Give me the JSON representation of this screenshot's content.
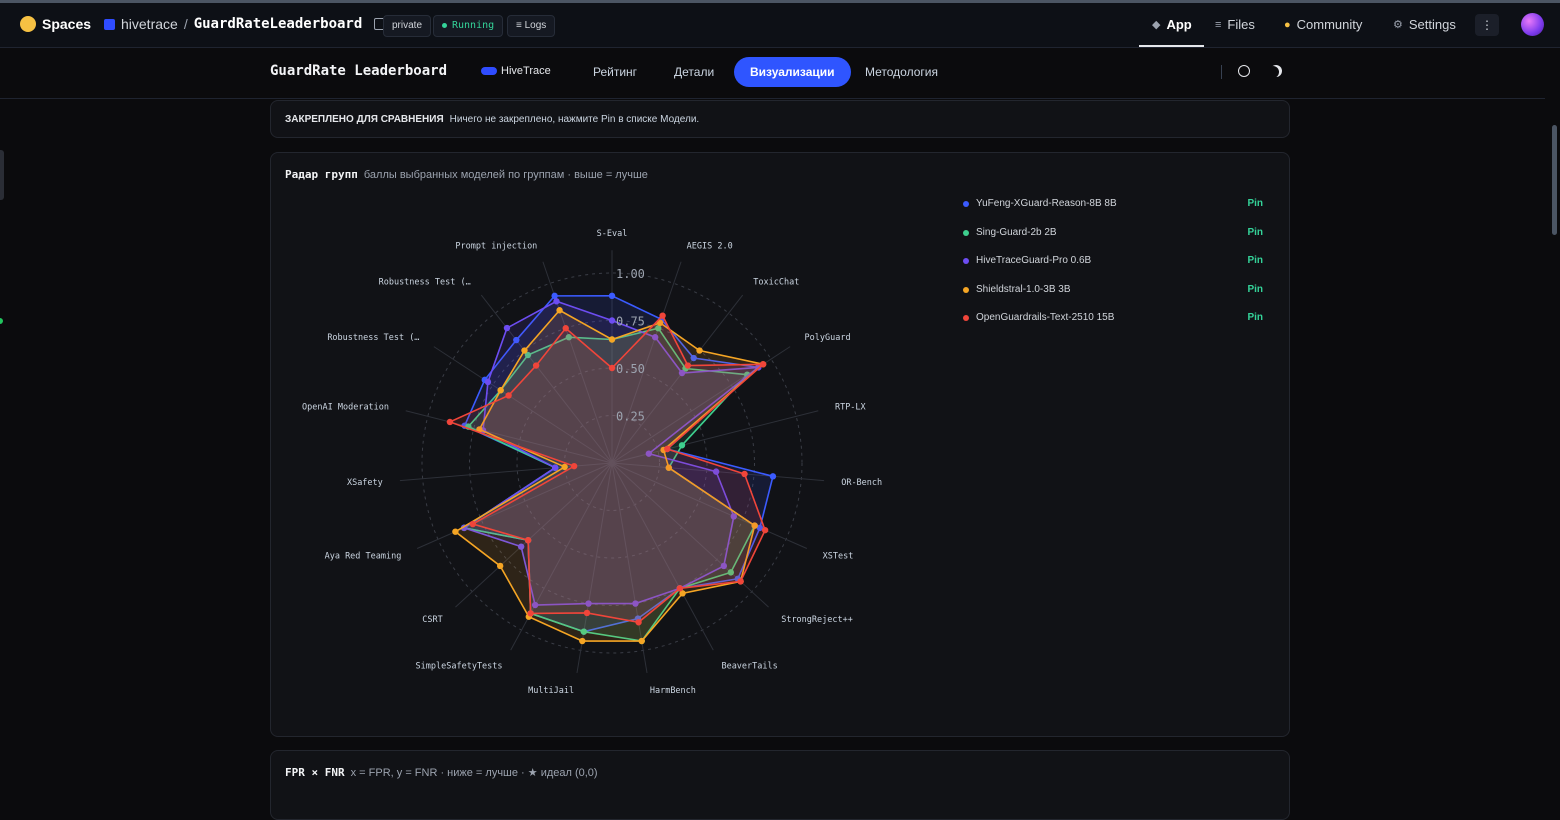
{
  "hf": {
    "brand": "Spaces",
    "org": "hivetrace",
    "repo": "GuardRateLeaderboard",
    "visibility": "private",
    "status": "Running",
    "logs": "Logs",
    "nav": {
      "app": "App",
      "files": "Files",
      "community": "Community",
      "settings": "Settings"
    }
  },
  "app": {
    "title": "GuardRate Leaderboard",
    "partner": "HiveTrace",
    "tabs": [
      "Рейтинг",
      "Детали",
      "Визуализации",
      "Методология"
    ],
    "active_tab": "Визуализации"
  },
  "pinned": {
    "label": "ЗАКРЕПЛЕНО ДЛЯ СРАВНЕНИЯ",
    "text": "Ничего не закреплено, нажмите Pin в списке Модели."
  },
  "radar": {
    "title": "Радар групп",
    "subtitle": "баллы выбранных моделей по группам · выше = лучше"
  },
  "fpr": {
    "title": "FPR × FNR",
    "subtitle": "x = FPR, y = FNR · ниже = лучше · ★ идеал (0,0)"
  },
  "legend": [
    {
      "name": "YuFeng-XGuard-Reason-8B 8B",
      "pin": "Pin",
      "color": "#3b5bff"
    },
    {
      "name": "Sing-Guard-2b 2B",
      "pin": "Pin",
      "color": "#3ecf8e"
    },
    {
      "name": "HiveTraceGuard-Pro 0.6B",
      "pin": "Pin",
      "color": "#6d4df2"
    },
    {
      "name": "Shieldstral-1.0-3B 3B",
      "pin": "Pin",
      "color": "#f5a524"
    },
    {
      "name": "OpenGuardrails-Text-2510 15B",
      "pin": "Pin",
      "color": "#f0453a"
    }
  ],
  "chart_data": {
    "type": "radar",
    "title": "Радар групп",
    "axis_max": 1.0,
    "ticks": [
      "0.25",
      "0.50",
      "0.75",
      "1.00"
    ],
    "tick_values": [
      0.25,
      0.5,
      0.75,
      1.0
    ],
    "categories": [
      "S-Eval",
      "AEGIS 2.0",
      "ToxicChat",
      "PolyGuard",
      "RTP-LX",
      "OR-Bench",
      "XSTest",
      "StrongReject++",
      "BeaverTails",
      "HarmBench",
      "MultiJail",
      "SimpleSafetyTests",
      "CSRT",
      "Aya Red Teaming",
      "XSafety",
      "OpenAI Moderation",
      "Robustness Test (…",
      "Robustness Test (…",
      "Prompt injection"
    ],
    "series": [
      {
        "name": "YuFeng-XGuard-Reason-8B 8B",
        "color": "#3b5bff",
        "values": [
          0.88,
          0.8,
          0.7,
          0.92,
          0.3,
          0.85,
          0.85,
          0.9,
          0.75,
          0.83,
          0.9,
          0.9,
          0.6,
          0.85,
          0.3,
          0.8,
          0.8,
          0.82,
          0.93
        ]
      },
      {
        "name": "Sing-Guard-2b 2B",
        "color": "#3ecf8e",
        "values": [
          0.65,
          0.75,
          0.63,
          0.85,
          0.38,
          0.3,
          0.82,
          0.85,
          0.75,
          0.95,
          0.9,
          0.9,
          0.6,
          0.85,
          0.3,
          0.78,
          0.7,
          0.72,
          0.7
        ]
      },
      {
        "name": "HiveTraceGuard-Pro 0.6B",
        "color": "#6d4df2",
        "values": [
          0.75,
          0.7,
          0.6,
          0.92,
          0.2,
          0.55,
          0.7,
          0.8,
          0.75,
          0.75,
          0.75,
          0.85,
          0.65,
          0.85,
          0.3,
          0.7,
          0.78,
          0.9,
          0.9
        ]
      },
      {
        "name": "Shieldstral-1.0-3B 3B",
        "color": "#f5a524",
        "values": [
          0.65,
          0.78,
          0.75,
          0.95,
          0.28,
          0.3,
          0.82,
          0.92,
          0.78,
          0.95,
          0.95,
          0.92,
          0.8,
          0.9,
          0.25,
          0.72,
          0.7,
          0.75,
          0.85
        ]
      },
      {
        "name": "OpenGuardrails-Text-2510 15B",
        "color": "#f0453a",
        "values": [
          0.5,
          0.82,
          0.65,
          0.95,
          0.3,
          0.7,
          0.88,
          0.92,
          0.75,
          0.85,
          0.8,
          0.9,
          0.6,
          0.8,
          0.2,
          0.88,
          0.65,
          0.65,
          0.75
        ]
      }
    ]
  }
}
